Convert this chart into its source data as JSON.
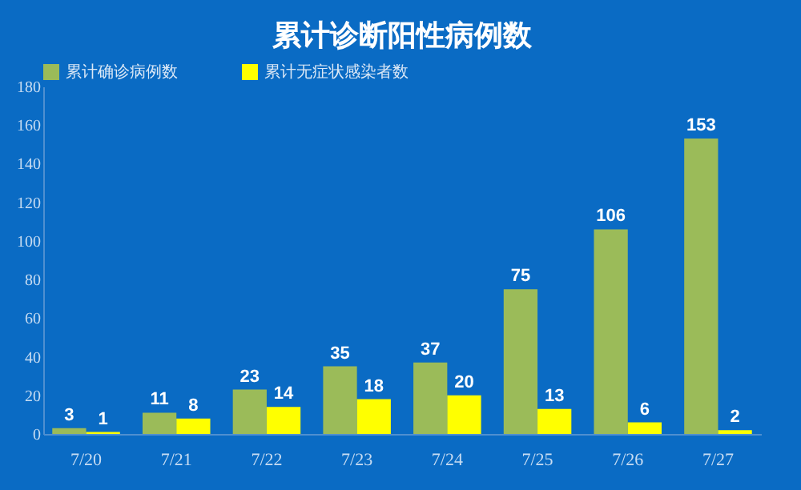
{
  "chart_data": {
    "type": "bar",
    "title": "累计诊断阳性病例数",
    "categories": [
      "7/20",
      "7/21",
      "7/22",
      "7/23",
      "7/24",
      "7/25",
      "7/26",
      "7/27"
    ],
    "series": [
      {
        "name": "累计确诊病例数",
        "color": "#9bbb59",
        "values": [
          3,
          11,
          23,
          35,
          37,
          75,
          106,
          153
        ]
      },
      {
        "name": "累计无症状感染者数",
        "color": "#ffff00",
        "values": [
          1,
          8,
          14,
          18,
          20,
          13,
          6,
          2
        ]
      }
    ],
    "ylim": [
      0,
      180
    ],
    "yticks": [
      0,
      20,
      40,
      60,
      80,
      100,
      120,
      140,
      160,
      180
    ],
    "data_labels": true,
    "legend": "top",
    "grid": false
  }
}
